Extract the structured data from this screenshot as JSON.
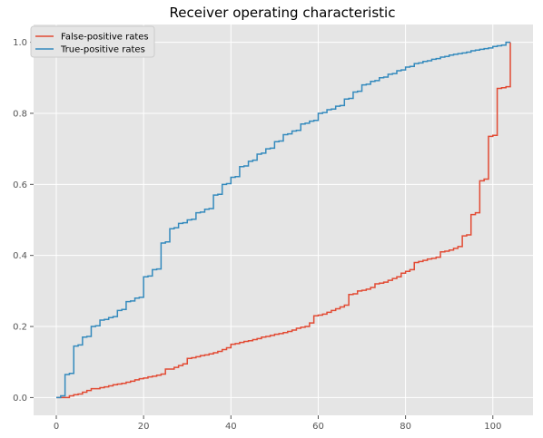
{
  "chart_data": {
    "type": "line",
    "title": "Receiver operating characteristic",
    "xlabel": "",
    "ylabel": "",
    "xlim": [
      -5.2,
      109.2
    ],
    "ylim": [
      -0.05,
      1.05
    ],
    "x_ticks": [
      0,
      20,
      40,
      60,
      80,
      100
    ],
    "y_ticks": [
      0.0,
      0.2,
      0.4,
      0.6,
      0.8,
      1.0
    ],
    "x_tick_labels": [
      "0",
      "20",
      "40",
      "60",
      "80",
      "100"
    ],
    "y_tick_labels": [
      "0.0",
      "0.2",
      "0.4",
      "0.6",
      "0.8",
      "1.0"
    ],
    "grid": true,
    "legend_position": "top-left",
    "background": "#E5E5E5",
    "series": [
      {
        "name": "False-positive rates",
        "color": "#E24A33",
        "x": [
          0,
          1,
          2,
          3,
          4,
          5,
          6,
          7,
          8,
          9,
          10,
          11,
          12,
          13,
          14,
          15,
          16,
          17,
          18,
          19,
          20,
          21,
          22,
          23,
          24,
          25,
          26,
          27,
          28,
          29,
          30,
          31,
          32,
          33,
          34,
          35,
          36,
          37,
          38,
          39,
          40,
          41,
          42,
          43,
          44,
          45,
          46,
          47,
          48,
          49,
          50,
          51,
          52,
          53,
          54,
          55,
          56,
          57,
          58,
          59,
          60,
          61,
          62,
          63,
          64,
          65,
          66,
          67,
          68,
          69,
          70,
          71,
          72,
          73,
          74,
          75,
          76,
          77,
          78,
          79,
          80,
          81,
          82,
          83,
          84,
          85,
          86,
          87,
          88,
          89,
          90,
          91,
          92,
          93,
          94,
          95,
          96,
          97,
          98,
          99,
          100,
          101,
          102,
          103,
          104
        ],
        "y": [
          0.0,
          0.0,
          0.0,
          0.005,
          0.008,
          0.01,
          0.015,
          0.02,
          0.025,
          0.025,
          0.028,
          0.03,
          0.033,
          0.036,
          0.038,
          0.04,
          0.043,
          0.046,
          0.05,
          0.053,
          0.055,
          0.058,
          0.06,
          0.063,
          0.066,
          0.08,
          0.08,
          0.085,
          0.09,
          0.095,
          0.11,
          0.112,
          0.115,
          0.118,
          0.12,
          0.123,
          0.126,
          0.13,
          0.135,
          0.14,
          0.15,
          0.152,
          0.155,
          0.158,
          0.16,
          0.163,
          0.166,
          0.17,
          0.172,
          0.175,
          0.178,
          0.18,
          0.183,
          0.186,
          0.19,
          0.195,
          0.198,
          0.2,
          0.21,
          0.23,
          0.232,
          0.235,
          0.24,
          0.245,
          0.25,
          0.255,
          0.26,
          0.29,
          0.292,
          0.3,
          0.302,
          0.305,
          0.31,
          0.32,
          0.322,
          0.325,
          0.33,
          0.335,
          0.34,
          0.35,
          0.355,
          0.36,
          0.38,
          0.383,
          0.386,
          0.39,
          0.392,
          0.395,
          0.41,
          0.412,
          0.415,
          0.42,
          0.425,
          0.455,
          0.458,
          0.515,
          0.52,
          0.61,
          0.615,
          0.735,
          0.738,
          0.87,
          0.872,
          0.875,
          1.0
        ]
      },
      {
        "name": "True-positive rates",
        "color": "#348ABD",
        "x": [
          0,
          1,
          2,
          3,
          4,
          5,
          6,
          7,
          8,
          9,
          10,
          11,
          12,
          13,
          14,
          15,
          16,
          17,
          18,
          19,
          20,
          21,
          22,
          23,
          24,
          25,
          26,
          27,
          28,
          29,
          30,
          31,
          32,
          33,
          34,
          35,
          36,
          37,
          38,
          39,
          40,
          41,
          42,
          43,
          44,
          45,
          46,
          47,
          48,
          49,
          50,
          51,
          52,
          53,
          54,
          55,
          56,
          57,
          58,
          59,
          60,
          61,
          62,
          63,
          64,
          65,
          66,
          67,
          68,
          69,
          70,
          71,
          72,
          73,
          74,
          75,
          76,
          77,
          78,
          79,
          80,
          81,
          82,
          83,
          84,
          85,
          86,
          87,
          88,
          89,
          90,
          91,
          92,
          93,
          94,
          95,
          96,
          97,
          98,
          99,
          100,
          101,
          102,
          103,
          104
        ],
        "y": [
          0.0,
          0.005,
          0.065,
          0.068,
          0.145,
          0.148,
          0.17,
          0.172,
          0.2,
          0.202,
          0.218,
          0.22,
          0.225,
          0.228,
          0.245,
          0.248,
          0.27,
          0.272,
          0.28,
          0.282,
          0.34,
          0.342,
          0.36,
          0.362,
          0.435,
          0.438,
          0.475,
          0.478,
          0.49,
          0.492,
          0.5,
          0.502,
          0.52,
          0.522,
          0.53,
          0.532,
          0.57,
          0.572,
          0.6,
          0.602,
          0.62,
          0.622,
          0.65,
          0.652,
          0.665,
          0.668,
          0.685,
          0.688,
          0.7,
          0.702,
          0.72,
          0.722,
          0.74,
          0.742,
          0.75,
          0.752,
          0.77,
          0.772,
          0.778,
          0.78,
          0.8,
          0.802,
          0.81,
          0.812,
          0.82,
          0.822,
          0.84,
          0.842,
          0.86,
          0.862,
          0.88,
          0.882,
          0.89,
          0.892,
          0.9,
          0.902,
          0.91,
          0.912,
          0.92,
          0.922,
          0.93,
          0.932,
          0.94,
          0.942,
          0.946,
          0.948,
          0.952,
          0.954,
          0.958,
          0.96,
          0.964,
          0.966,
          0.968,
          0.97,
          0.972,
          0.976,
          0.978,
          0.98,
          0.982,
          0.984,
          0.988,
          0.99,
          0.992,
          1.0,
          1.0
        ]
      }
    ]
  }
}
